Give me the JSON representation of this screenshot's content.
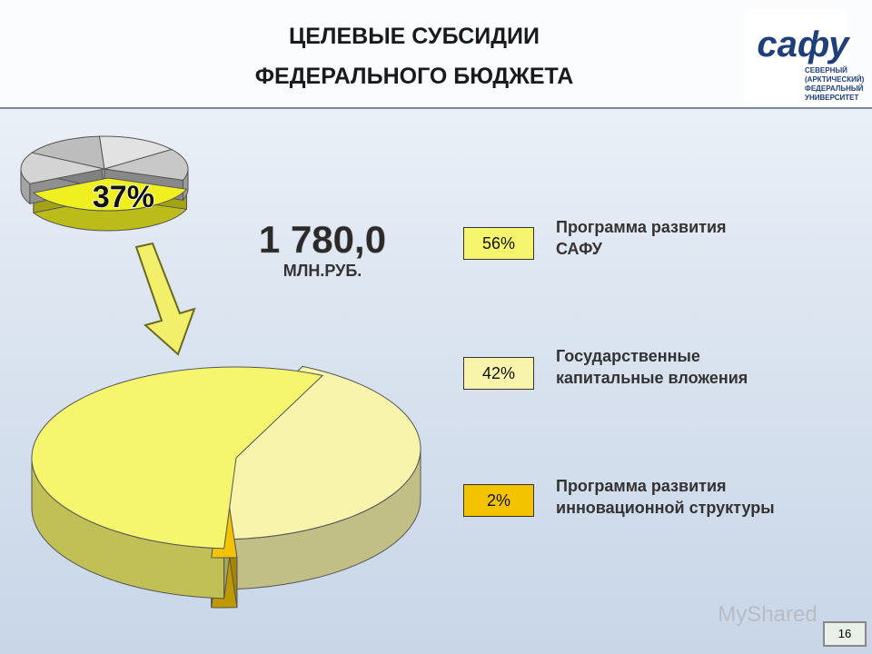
{
  "header": {
    "title_lines": [
      "ЦЕЛЕВЫЕ СУБСИДИИ",
      "ФЕДЕРАЛЬНОГО БЮДЖЕТА"
    ],
    "logo": {
      "name": "сафу",
      "lines": [
        "СЕВЕРНЫЙ",
        "(АРКТИЧЕСКИЙ)",
        "ФЕДЕРАЛЬНЫЙ",
        "УНИВЕРСИТЕТ"
      ]
    }
  },
  "chart_data": [
    {
      "type": "pie",
      "values": [
        37
      ],
      "value_labels": [
        "37%"
      ],
      "colors": [
        "#f0f020"
      ]
    },
    {
      "type": "pie",
      "total_label": "1 780,0",
      "unit": "МЛН.РУБ.",
      "categories": [
        "Программа развития САФУ",
        "Государственные капитальные вложения",
        "Программа развития инновационной структуры"
      ],
      "values": [
        56,
        42,
        2
      ],
      "value_labels": [
        "56%",
        "42%",
        "2%"
      ],
      "colors": [
        "#f6f66e",
        "#f8f4ac",
        "#f3c300"
      ]
    }
  ],
  "footer": {
    "watermark": "MyShared",
    "page": "16"
  }
}
